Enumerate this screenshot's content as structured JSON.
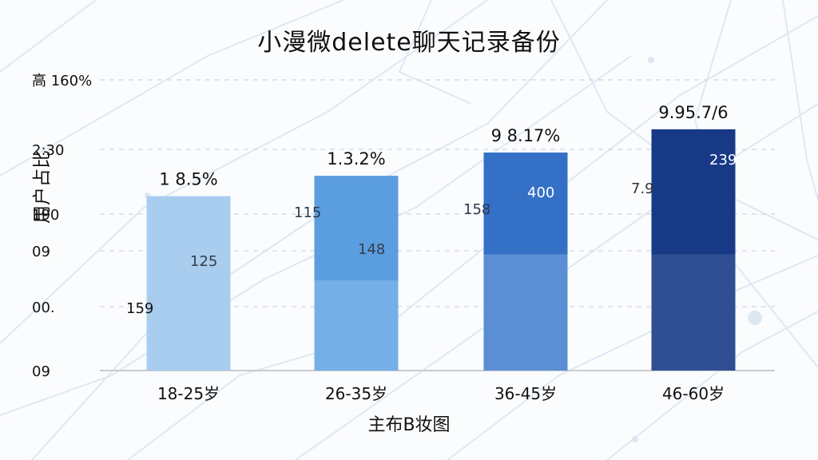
{
  "chart_data": {
    "type": "bar",
    "title": "小漫微delete聊天记录备份",
    "ylabel": "用户占比",
    "xlabel": "主布B妆图",
    "categories": [
      "18-25岁",
      "26-35岁",
      "36-45岁",
      "46-60岁"
    ],
    "y_tick_labels": [
      "高 160%",
      "2:30",
      "190",
      "09",
      "00.",
      "09"
    ],
    "ylim": [
      0,
      100
    ],
    "grid": true,
    "bar_values": [
      60,
      67,
      75,
      83
    ],
    "bar_top_labels": [
      "1 8.5%",
      "1.3.2%",
      "9 8.17%",
      "9.95.7/6"
    ],
    "bar_colors": [
      "#a9cdef",
      "#5b9ee0",
      "#3470c6",
      "#183a86"
    ],
    "segments": [
      {
        "category": "18-25岁",
        "lower_value": 60,
        "label_left": "159",
        "label_right": "125"
      },
      {
        "category": "26-35岁",
        "lower_value": 31,
        "label_left": "115",
        "label_right": "148"
      },
      {
        "category": "36-45岁",
        "lower_value": 40,
        "label_left": "158",
        "label_right": "400"
      },
      {
        "category": "46-60岁",
        "lower_value": 40,
        "label_left": "7.9",
        "label_right": "239"
      }
    ],
    "lower_segment_colors": [
      "#a9cdef",
      "#74b0e6",
      "#5b8fd4",
      "#2f4f92"
    ]
  }
}
